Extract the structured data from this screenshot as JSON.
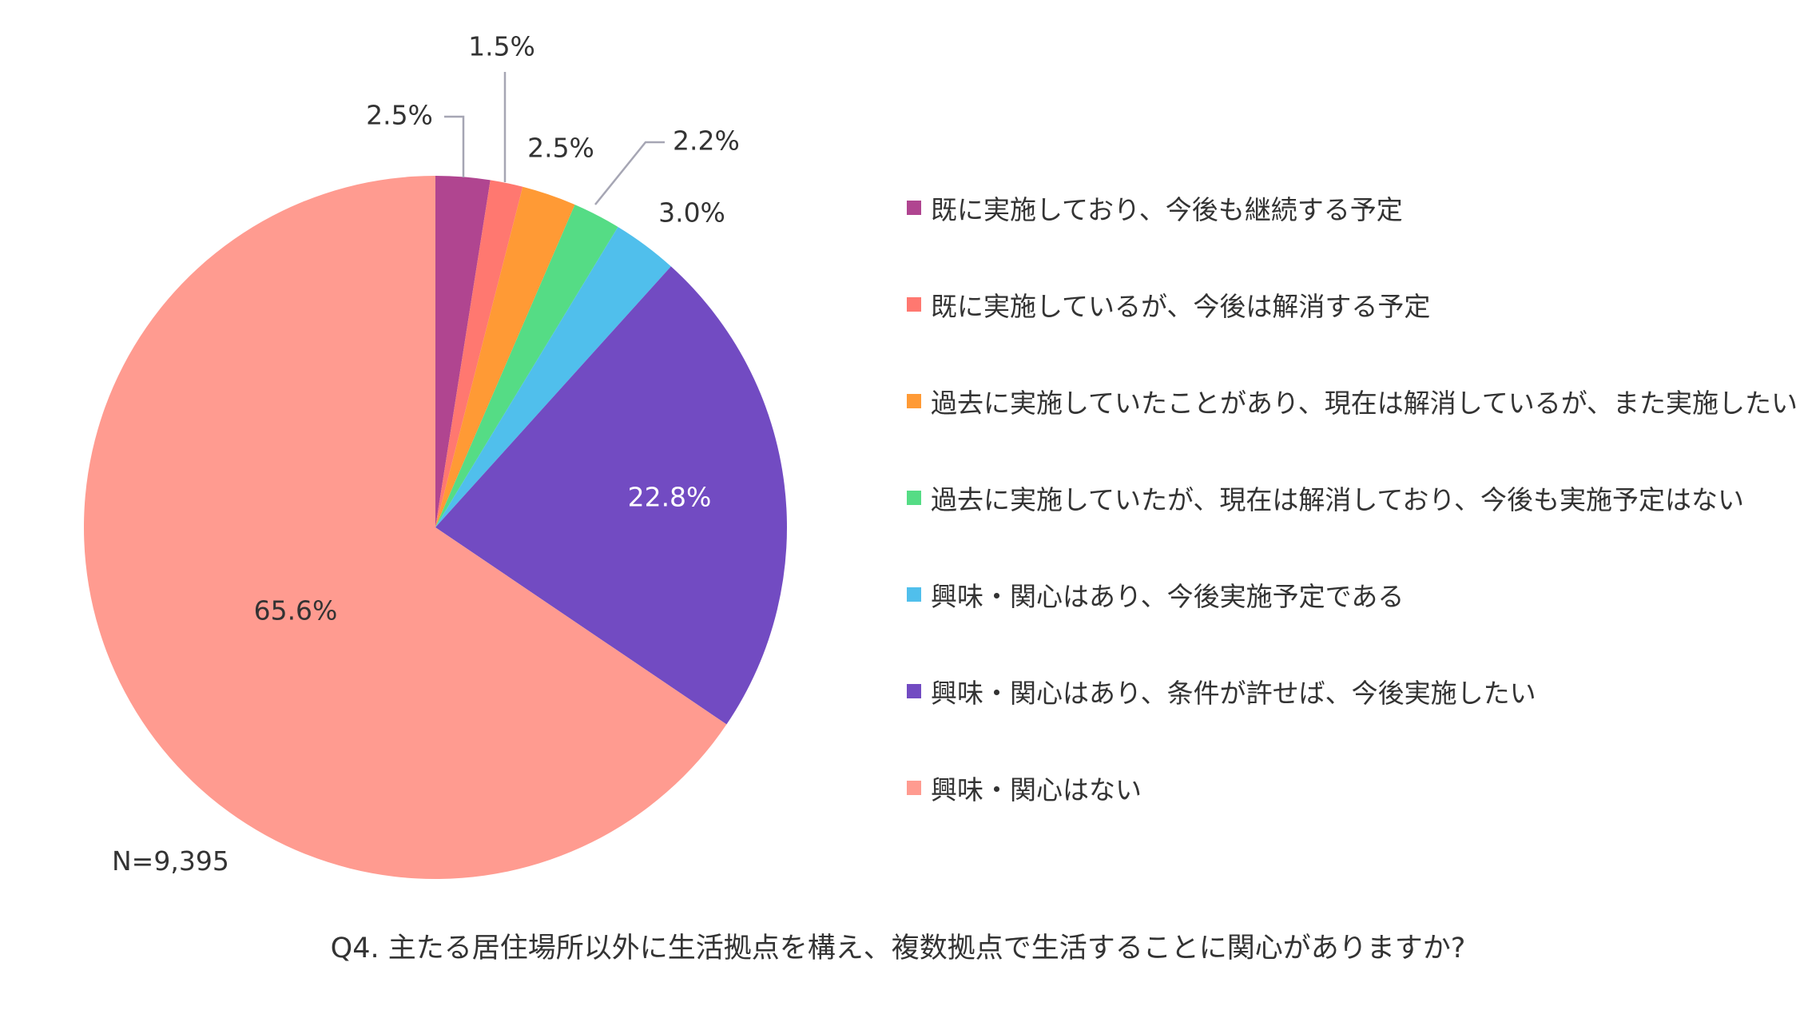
{
  "chart_data": {
    "type": "pie",
    "title": "",
    "slices": [
      {
        "label": "既に実施しており、今後も継続する予定",
        "value": 2.5,
        "display": "2.5%",
        "color": "#b04590"
      },
      {
        "label": "既に実施しているが、今後は解消する予定",
        "value": 1.5,
        "display": "1.5%",
        "color": "#ff7870"
      },
      {
        "label": "過去に実施していたことがあり、現在は解消しているが、また実施したい",
        "value": 2.5,
        "display": "2.5%",
        "color": "#ff9a35"
      },
      {
        "label": "過去に実施していたが、現在は解消しており、今後も実施予定はない",
        "value": 2.2,
        "display": "2.2%",
        "color": "#55dc85"
      },
      {
        "label": "興味・関心はあり、今後実施予定である",
        "value": 3.0,
        "display": "3.0%",
        "color": "#50bfec"
      },
      {
        "label": "興味・関心はあり、条件が許せば、今後実施したい",
        "value": 22.8,
        "display": "22.8%",
        "color": "#724bc2"
      },
      {
        "label": "興味・関心はない",
        "value": 65.6,
        "display": "65.6%",
        "color": "#ff9b90"
      }
    ],
    "legend_position": "right",
    "note": "N=9,395",
    "question": "Q4. 主たる居住場所以外に生活拠点を構え、複数拠点で生活することに関心がありますか?"
  }
}
